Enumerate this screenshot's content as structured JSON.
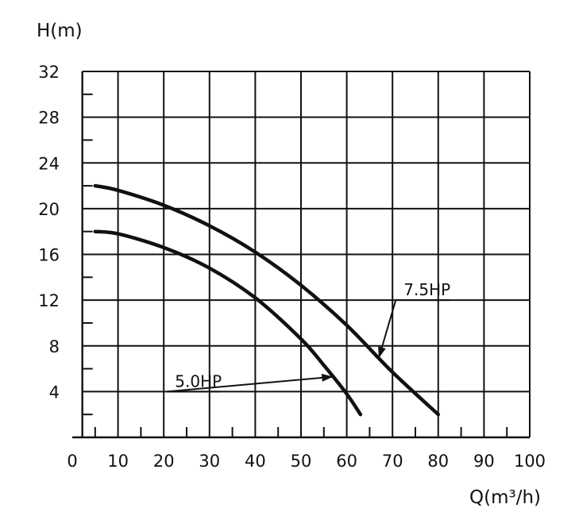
{
  "chart_data": {
    "type": "line",
    "title": "",
    "xlabel": "Q(m³/h)",
    "ylabel": "H(m)",
    "xlim": [
      0,
      100
    ],
    "ylim": [
      0,
      32
    ],
    "grid": true,
    "x_ticks": [
      0,
      10,
      20,
      30,
      40,
      50,
      60,
      70,
      80,
      90,
      100
    ],
    "y_ticks": [
      4,
      8,
      12,
      16,
      20,
      24,
      28,
      32
    ],
    "series": [
      {
        "name": "7.5HP",
        "x": [
          5,
          10,
          20,
          30,
          40,
          50,
          60,
          70,
          80
        ],
        "y": [
          22,
          21.6,
          20.3,
          18.5,
          16.2,
          13.3,
          9.8,
          5.7,
          2
        ]
      },
      {
        "name": "5.0HP",
        "x": [
          5,
          10,
          20,
          30,
          40,
          50,
          55,
          60,
          63
        ],
        "y": [
          18,
          17.8,
          16.6,
          14.8,
          12.2,
          8.6,
          6.3,
          3.8,
          2
        ]
      }
    ],
    "annotations": [
      {
        "text": "7.5HP",
        "x": 80,
        "y": 12
      },
      {
        "text": "5.0HP",
        "x": 30,
        "y": 4
      }
    ]
  }
}
